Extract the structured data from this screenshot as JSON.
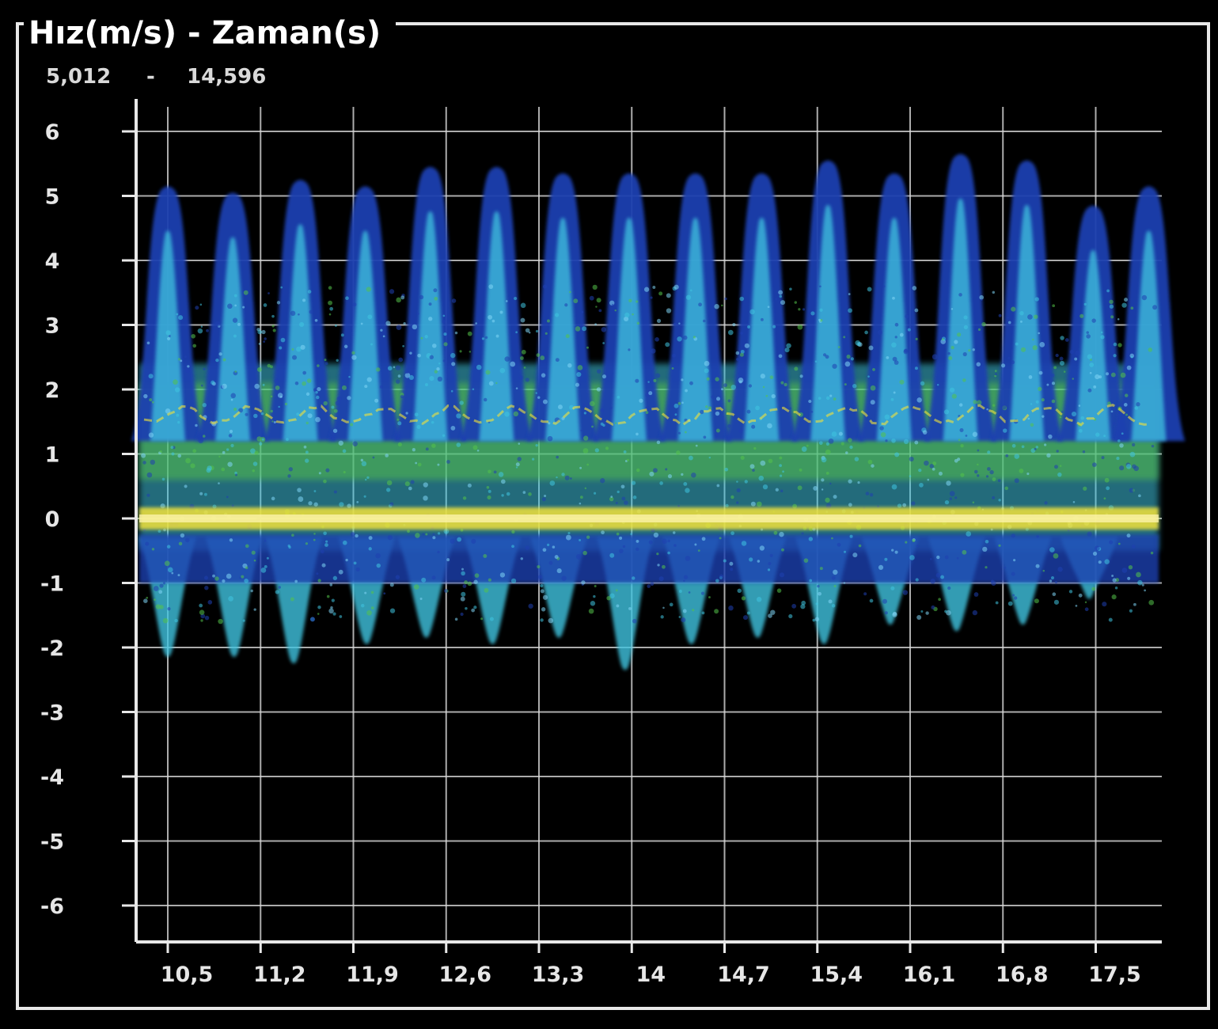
{
  "window": {
    "title": "Hız(m/s) - Zaman(s)",
    "range_start": "5,012",
    "range_separator": "-",
    "range_end": "14,596"
  },
  "colors": {
    "background": "#000000",
    "grid": "#d8d8d8",
    "frame": "#e8e8e8",
    "intensity_low": "#1f3fb0",
    "intensity_mid": "#3fc4e0",
    "intensity_high": "#54c24a",
    "intensity_peak": "#f2e23a"
  },
  "chart_data": {
    "type": "heatmap",
    "title": "Hız(m/s) - Zaman(s)",
    "xlabel": "",
    "ylabel": "",
    "xlim": [
      10.2,
      17.9
    ],
    "ylim": [
      -6.6,
      6.6
    ],
    "grid": true,
    "x_ticks": [
      "10,5",
      "11,2",
      "11,9",
      "12,6",
      "13,3",
      "14",
      "14,7",
      "15,4",
      "16,1",
      "16,8",
      "17,5"
    ],
    "x_tick_values": [
      10.5,
      11.2,
      11.9,
      12.6,
      13.3,
      14.0,
      14.7,
      15.4,
      16.1,
      16.8,
      17.5
    ],
    "y_ticks": [
      "6",
      "5",
      "4",
      "3",
      "2",
      "1",
      "0",
      "-1",
      "-2",
      "-3",
      "-4",
      "-5",
      "-6"
    ],
    "y_tick_values": [
      6,
      5,
      4,
      3,
      2,
      1,
      0,
      -1,
      -2,
      -3,
      -4,
      -5,
      -6
    ],
    "series": [
      {
        "peak_times": [
          10.5,
          10.99,
          11.5,
          11.99,
          12.48,
          12.98,
          13.48,
          13.98,
          14.48,
          14.98,
          15.48,
          15.98,
          16.48,
          16.98,
          17.48,
          17.9
        ],
        "peak_velocities": [
          5.1,
          5.0,
          5.2,
          5.1,
          5.4,
          5.4,
          5.3,
          5.3,
          5.3,
          5.3,
          5.5,
          5.3,
          5.6,
          5.5,
          4.8,
          5.1
        ],
        "min_times": [
          10.5,
          11.0,
          11.45,
          12.0,
          12.45,
          12.95,
          13.45,
          13.95,
          14.45,
          14.95,
          15.45,
          15.95,
          16.45,
          16.95,
          17.45
        ],
        "min_velocities": [
          -2.1,
          -2.1,
          -2.2,
          -1.9,
          -1.8,
          -1.9,
          -1.8,
          -2.3,
          -1.9,
          -1.8,
          -1.9,
          -1.6,
          -1.7,
          -1.6,
          -1.2
        ],
        "baseline_velocity": 0,
        "mean_band_velocity": 1.6
      }
    ]
  }
}
